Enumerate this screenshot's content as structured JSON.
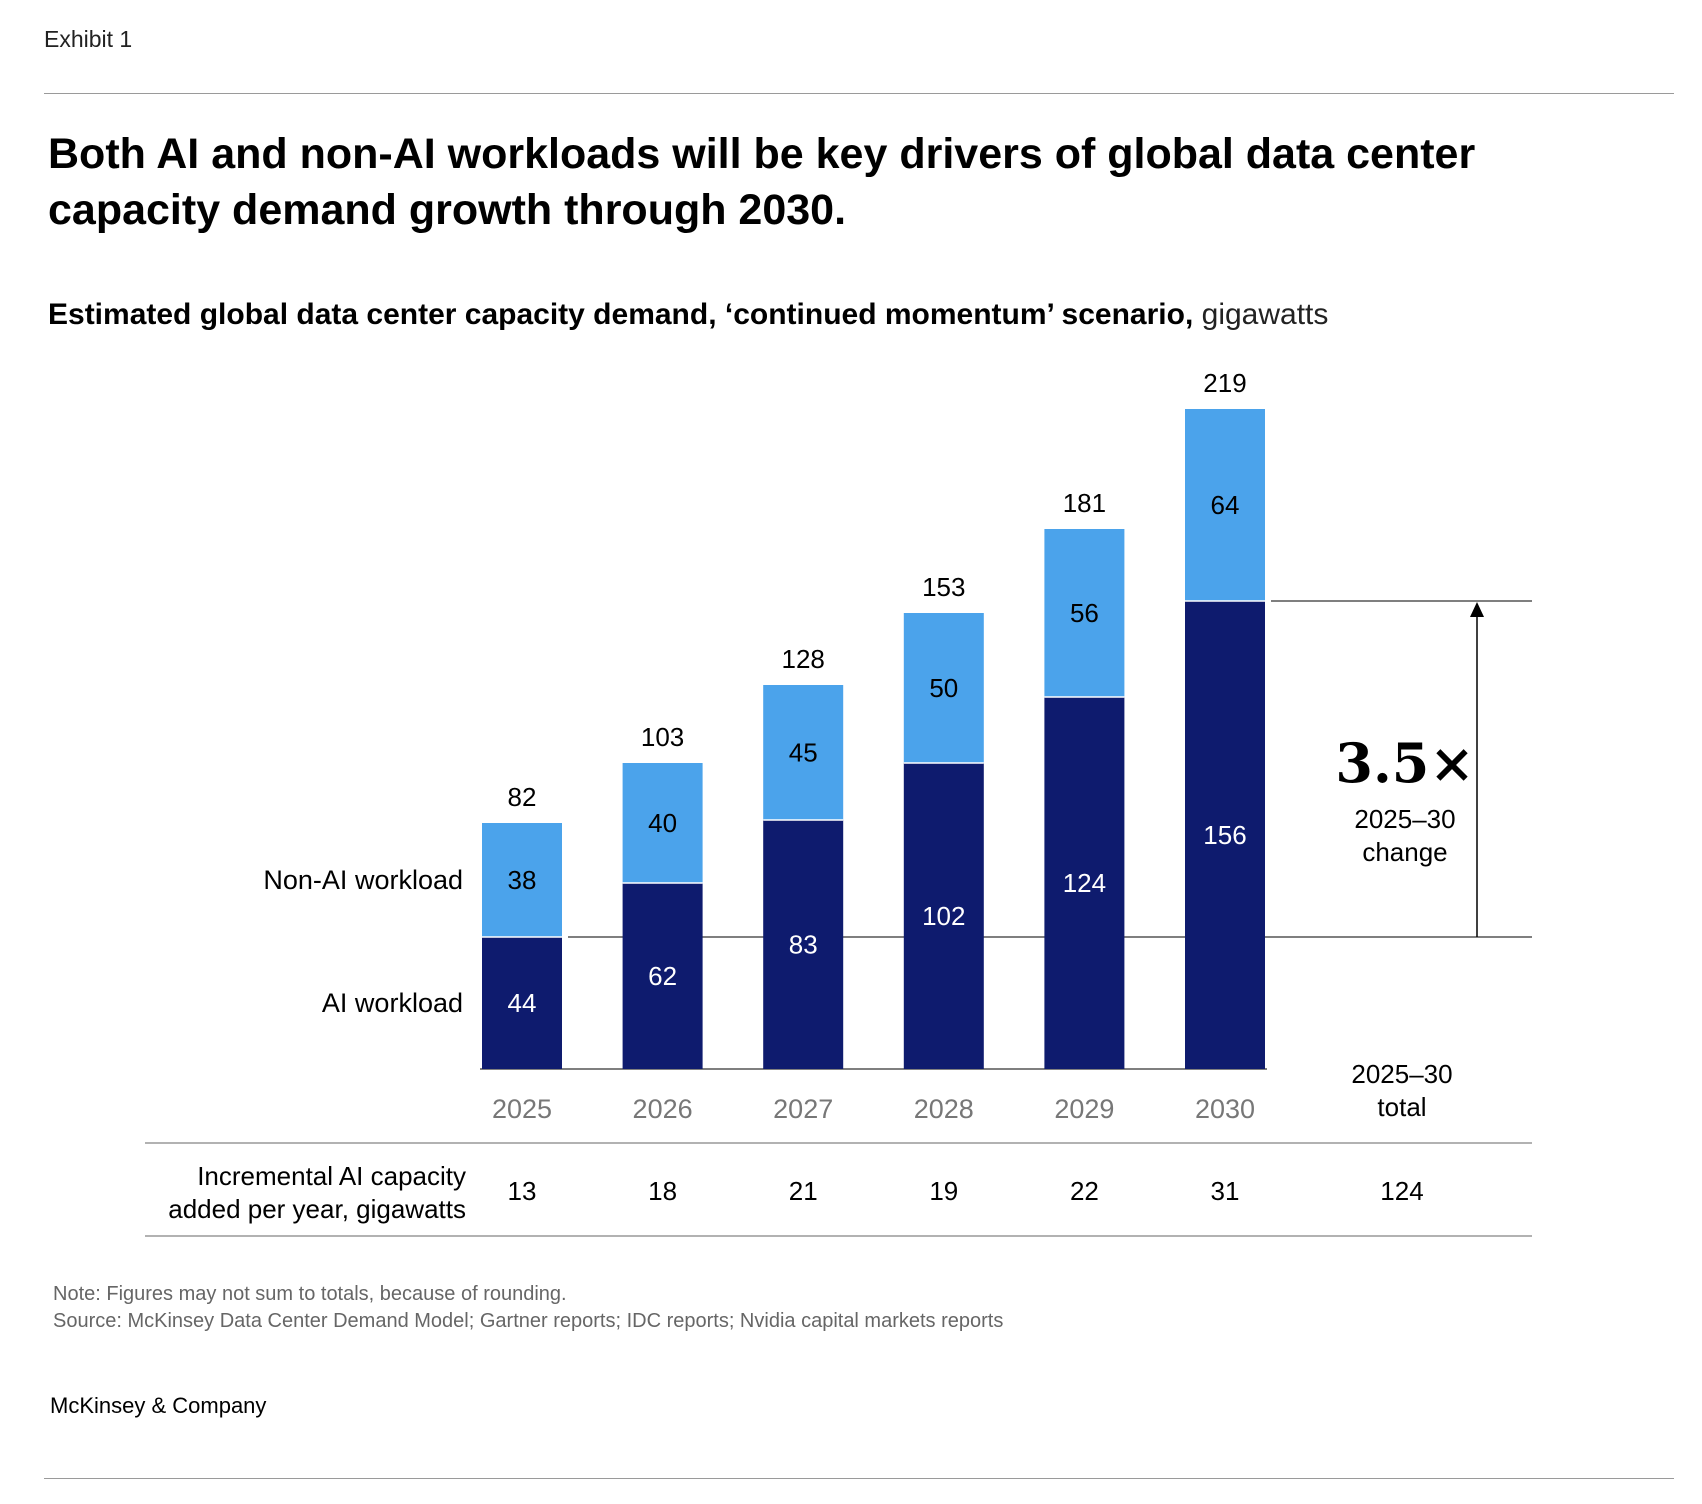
{
  "header": {
    "exhibit": "Exhibit 1",
    "title": "Both AI and non-AI workloads will be key drivers of global data center capacity demand growth through 2030.",
    "subtitle_bold": "Estimated global data center capacity demand, ‘continued momentum’ scenario,",
    "subtitle_unit": " gigawatts"
  },
  "colors": {
    "ai": "#0e1b6e",
    "non_ai": "#4ba3eb",
    "text_on_dark": "#ffffff",
    "axis_label": "#777777"
  },
  "chart_data": {
    "type": "bar",
    "stacked": true,
    "categories": [
      "2025",
      "2026",
      "2027",
      "2028",
      "2029",
      "2030"
    ],
    "series": [
      {
        "name": "AI workload",
        "values": [
          44,
          62,
          83,
          102,
          124,
          156
        ]
      },
      {
        "name": "Non-AI workload",
        "values": [
          38,
          40,
          45,
          50,
          56,
          64
        ]
      }
    ],
    "totals": [
      82,
      103,
      128,
      153,
      181,
      219
    ],
    "ylim": [
      0,
      219
    ],
    "grid": false,
    "legend": "left of first bar",
    "annotation": {
      "multiplier": "3.5×",
      "line1": "2025–30",
      "line2": "change"
    },
    "total_header": {
      "line1": "2025–30",
      "line2": "total"
    },
    "incremental": {
      "label_line1": "Incremental AI capacity",
      "label_line2": "added per year, gigawatts",
      "values": [
        "13",
        "18",
        "21",
        "19",
        "22",
        "31"
      ],
      "total": "124"
    }
  },
  "footer": {
    "note": "Note: Figures may not sum to totals, because of rounding.",
    "source": "Source: McKinsey Data Center Demand Model; Gartner reports; IDC reports; Nvidia capital markets reports",
    "brand": "McKinsey & Company"
  }
}
